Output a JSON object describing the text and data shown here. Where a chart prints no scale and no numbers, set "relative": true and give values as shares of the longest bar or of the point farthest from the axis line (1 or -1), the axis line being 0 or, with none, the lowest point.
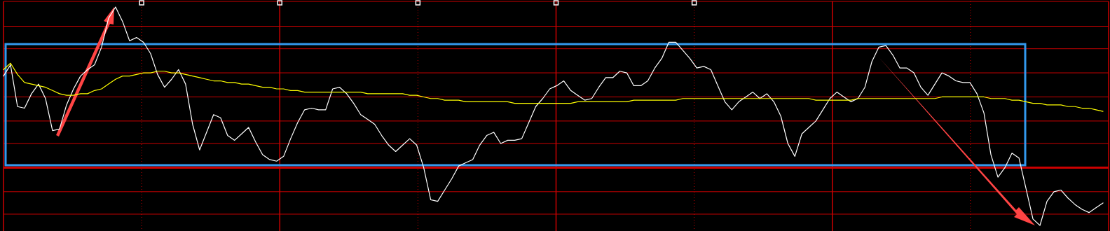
{
  "chart_data": {
    "type": "line",
    "relative": true,
    "grid": true,
    "ref_lines": [
      {
        "axis": "y",
        "value": 0.88,
        "color": "#cc0000"
      },
      {
        "axis": "y",
        "value": 0.74,
        "color": "#cc0000"
      },
      {
        "axis": "y",
        "value": 0.59,
        "color": "#cc0000"
      },
      {
        "axis": "y",
        "value": 0.44,
        "color": "#cc0000"
      },
      {
        "axis": "y",
        "value": 0.29,
        "color": "#cc0000"
      },
      {
        "axis": "y",
        "value": 0.15,
        "color": "#cc0000"
      },
      {
        "axis": "y",
        "value": 0,
        "color": "#cc0000"
      },
      {
        "axis": "y",
        "value": -0.15,
        "color": "#cc0000"
      },
      {
        "axis": "y",
        "value": -0.29,
        "color": "#cc0000"
      }
    ],
    "categories": [
      null,
      null,
      null,
      null,
      null,
      null,
      null,
      null,
      null,
      null,
      null,
      null,
      null,
      null,
      null,
      null,
      null,
      null,
      null,
      null,
      null,
      null,
      null,
      null,
      null,
      null,
      null,
      null,
      null,
      null,
      null,
      null,
      null,
      null,
      null,
      null,
      null,
      null,
      null,
      null,
      null,
      null,
      null,
      null,
      null,
      null,
      null,
      null,
      null,
      null,
      null,
      null,
      null,
      null,
      null,
      null,
      null,
      null,
      null,
      null,
      null,
      null,
      null,
      null,
      null,
      null,
      null,
      null,
      null,
      null,
      null,
      null,
      null,
      null,
      null,
      null,
      null,
      null,
      null,
      null,
      null,
      null,
      null,
      null,
      null,
      null,
      null,
      null,
      null,
      null,
      null,
      null,
      null,
      null,
      null,
      null,
      null,
      null,
      null,
      null,
      null,
      null,
      null,
      null,
      null,
      null,
      null,
      null,
      null,
      null,
      null,
      null,
      null,
      null,
      null,
      null,
      null,
      null,
      null,
      null,
      null,
      null,
      null,
      null,
      null,
      null,
      null,
      null,
      null,
      null,
      null,
      null,
      null,
      null,
      null,
      null,
      null,
      null,
      null,
      null,
      null,
      null,
      null,
      null,
      null,
      null,
      null,
      null,
      null,
      null,
      null,
      null,
      null,
      null,
      null,
      null,
      null,
      null
    ],
    "series": [
      {
        "color": "#ffffff",
        "values": [
          0.57,
          0.64,
          0.38,
          0.37,
          0.46,
          0.52,
          0.43,
          0.23,
          0.24,
          0.39,
          0.49,
          0.57,
          0.61,
          0.64,
          0.75,
          0.93,
          1.0,
          0.91,
          0.79,
          0.81,
          0.78,
          0.71,
          0.58,
          0.5,
          0.55,
          0.61,
          0.52,
          0.27,
          0.11,
          0.22,
          0.33,
          0.31,
          0.2,
          0.17,
          0.21,
          0.25,
          0.16,
          0.08,
          0.05,
          0.04,
          0.07,
          0.18,
          0.28,
          0.36,
          0.37,
          0.36,
          0.36,
          0.49,
          0.5,
          0.46,
          0.4,
          0.33,
          0.3,
          0.27,
          0.2,
          0.14,
          0.1,
          0.14,
          0.18,
          0.14,
          0.0,
          -0.2,
          -0.21,
          -0.14,
          -0.07,
          0.01,
          0.03,
          0.05,
          0.14,
          0.2,
          0.22,
          0.15,
          0.17,
          0.17,
          0.18,
          0.28,
          0.38,
          0.43,
          0.49,
          0.51,
          0.54,
          0.48,
          0.45,
          0.42,
          0.43,
          0.5,
          0.56,
          0.56,
          0.6,
          0.59,
          0.51,
          0.51,
          0.54,
          0.62,
          0.68,
          0.78,
          0.78,
          0.73,
          0.68,
          0.62,
          0.63,
          0.61,
          0.51,
          0.41,
          0.36,
          0.41,
          0.44,
          0.47,
          0.43,
          0.46,
          0.41,
          0.32,
          0.15,
          0.07,
          0.21,
          0.25,
          0.29,
          0.36,
          0.43,
          0.47,
          0.44,
          0.41,
          0.43,
          0.5,
          0.66,
          0.75,
          0.76,
          0.7,
          0.62,
          0.62,
          0.59,
          0.5,
          0.45,
          0.52,
          0.59,
          0.57,
          0.54,
          0.53,
          0.53,
          0.46,
          0.34,
          0.08,
          -0.06,
          0.0,
          0.09,
          0.06,
          -0.13,
          -0.32,
          -0.36,
          -0.21,
          -0.15,
          -0.14,
          -0.19,
          -0.23,
          -0.26,
          -0.28,
          -0.25,
          -0.22
        ]
      },
      {
        "color": "#ffff00",
        "values": [
          0.61,
          0.65,
          0.58,
          0.53,
          0.52,
          0.51,
          0.5,
          0.48,
          0.46,
          0.45,
          0.45,
          0.46,
          0.46,
          0.48,
          0.49,
          0.52,
          0.55,
          0.57,
          0.57,
          0.58,
          0.59,
          0.59,
          0.6,
          0.6,
          0.59,
          0.59,
          0.58,
          0.57,
          0.56,
          0.55,
          0.54,
          0.54,
          0.53,
          0.53,
          0.52,
          0.52,
          0.51,
          0.5,
          0.5,
          0.49,
          0.49,
          0.48,
          0.48,
          0.47,
          0.47,
          0.47,
          0.47,
          0.47,
          0.47,
          0.47,
          0.47,
          0.47,
          0.46,
          0.46,
          0.46,
          0.46,
          0.46,
          0.46,
          0.45,
          0.45,
          0.44,
          0.43,
          0.43,
          0.42,
          0.42,
          0.42,
          0.41,
          0.41,
          0.41,
          0.41,
          0.41,
          0.41,
          0.41,
          0.4,
          0.4,
          0.4,
          0.4,
          0.4,
          0.4,
          0.4,
          0.4,
          0.4,
          0.41,
          0.41,
          0.41,
          0.41,
          0.41,
          0.41,
          0.41,
          0.41,
          0.42,
          0.42,
          0.42,
          0.42,
          0.42,
          0.42,
          0.42,
          0.43,
          0.43,
          0.43,
          0.43,
          0.43,
          0.43,
          0.43,
          0.43,
          0.43,
          0.43,
          0.43,
          0.43,
          0.43,
          0.43,
          0.43,
          0.43,
          0.43,
          0.43,
          0.43,
          0.42,
          0.42,
          0.42,
          0.42,
          0.42,
          0.42,
          0.43,
          0.43,
          0.43,
          0.43,
          0.43,
          0.43,
          0.43,
          0.43,
          0.43,
          0.43,
          0.43,
          0.43,
          0.44,
          0.44,
          0.44,
          0.44,
          0.44,
          0.44,
          0.44,
          0.43,
          0.43,
          0.43,
          0.42,
          0.42,
          0.41,
          0.4,
          0.4,
          0.39,
          0.39,
          0.39,
          0.38,
          0.38,
          0.37,
          0.37,
          0.36,
          0.35
        ]
      }
    ]
  }
}
